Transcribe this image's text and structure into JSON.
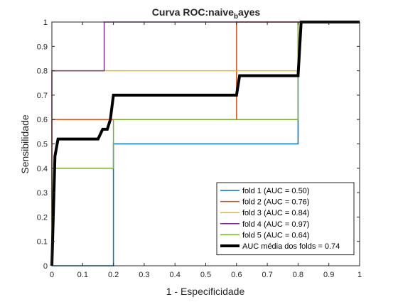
{
  "chart_data": {
    "type": "line",
    "title": "Curva ROC:naive",
    "title_subscript": "b",
    "title_suffix": "ayes",
    "xlabel": "1 - Especificidade",
    "ylabel": "Sensibilidade",
    "xlim": [
      0,
      1
    ],
    "ylim": [
      0,
      1
    ],
    "xticks": [
      "0",
      "0.1",
      "0.2",
      "0.3",
      "0.4",
      "0.5",
      "0.6",
      "0.7",
      "0.8",
      "0.9",
      "1"
    ],
    "yticks": [
      "0",
      "0.1",
      "0.2",
      "0.3",
      "0.4",
      "0.5",
      "0.6",
      "0.7",
      "0.8",
      "0.9",
      "1"
    ],
    "grid": false,
    "legend_position": "bottom-right",
    "series": [
      {
        "name": "fold 1 (AUC = 0.50)",
        "color": "#0072BD",
        "width": 1.5,
        "x": [
          0,
          0,
          0.2,
          0.2,
          0.8,
          0.8,
          1
        ],
        "y": [
          0,
          0,
          0,
          0.5,
          0.5,
          1,
          1
        ]
      },
      {
        "name": "fold 2 (AUC = 0.76)",
        "color": "#D95319",
        "width": 1.5,
        "x": [
          0,
          0,
          0.6,
          0.6,
          1
        ],
        "y": [
          0,
          0.6,
          0.6,
          1,
          1
        ]
      },
      {
        "name": "fold 3 (AUC = 0.84)",
        "color": "#EDB120",
        "width": 1.5,
        "x": [
          0,
          0,
          0.8,
          0.8,
          1
        ],
        "y": [
          0,
          0.8,
          0.8,
          1,
          1
        ]
      },
      {
        "name": "fold 4 (AUC = 0.97)",
        "color": "#7E2F8E",
        "width": 1.5,
        "x": [
          0,
          0,
          0.17,
          0.17,
          1
        ],
        "y": [
          0,
          0.8,
          0.8,
          1,
          1
        ]
      },
      {
        "name": "fold 5 (AUC = 0.64)",
        "color": "#77AC30",
        "width": 1.5,
        "x": [
          0,
          0,
          0.2,
          0.2,
          0.8,
          0.8,
          1
        ],
        "y": [
          0,
          0.4,
          0.4,
          0.6,
          0.6,
          1,
          1
        ]
      },
      {
        "name": "AUC média dos folds = 0.74",
        "color": "#000000",
        "width": 4,
        "x": [
          0,
          0.01,
          0.02,
          0.04,
          0.15,
          0.165,
          0.18,
          0.19,
          0.2,
          0.6,
          0.61,
          0.8,
          0.81,
          1
        ],
        "y": [
          0,
          0.45,
          0.52,
          0.52,
          0.52,
          0.56,
          0.56,
          0.6,
          0.7,
          0.7,
          0.78,
          0.78,
          1,
          1
        ]
      }
    ]
  }
}
